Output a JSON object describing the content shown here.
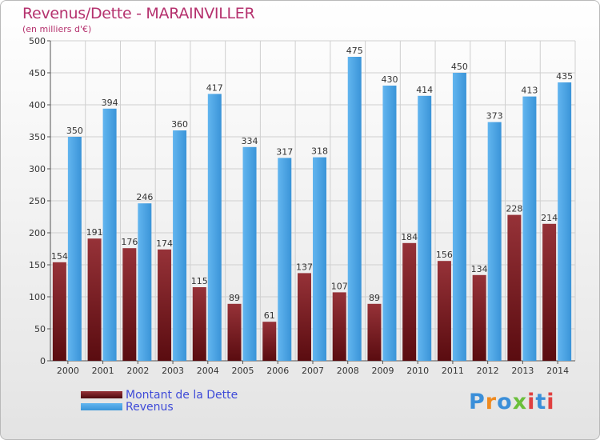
{
  "title": "Revenus/Dette - MARAINVILLER",
  "subtitle": "(en milliers d'€)",
  "legend": [
    {
      "label": "Montant de la Dette",
      "color": "#7a1f24"
    },
    {
      "label": "Revenus",
      "color": "#4ea6e6"
    }
  ],
  "logo": {
    "text": "Proxiti",
    "letters": [
      "P",
      "r",
      "o",
      "x",
      "i",
      "t",
      "i"
    ],
    "colors": [
      "#3b8fd9",
      "#ef8a1f",
      "#3b8fd9",
      "#6abf3b",
      "#e04040",
      "#3b8fd9",
      "#e04040"
    ]
  },
  "chart_data": {
    "type": "bar",
    "categories": [
      "2000",
      "2001",
      "2002",
      "2003",
      "2004",
      "2005",
      "2006",
      "2007",
      "2008",
      "2009",
      "2010",
      "2011",
      "2012",
      "2013",
      "2014"
    ],
    "series": [
      {
        "name": "Montant de la Dette",
        "color": "#7a1f24",
        "values": [
          154,
          191,
          176,
          174,
          115,
          89,
          61,
          137,
          107,
          89,
          184,
          156,
          134,
          228,
          214
        ]
      },
      {
        "name": "Revenus",
        "color": "#4ea6e6",
        "values": [
          350,
          394,
          246,
          360,
          417,
          334,
          317,
          318,
          475,
          430,
          414,
          450,
          373,
          413,
          435
        ]
      }
    ],
    "ylim": [
      0,
      500
    ],
    "yticks": [
      0,
      50,
      100,
      150,
      200,
      250,
      300,
      350,
      400,
      450,
      500
    ],
    "grid": true,
    "legend_position": "bottom-left"
  }
}
